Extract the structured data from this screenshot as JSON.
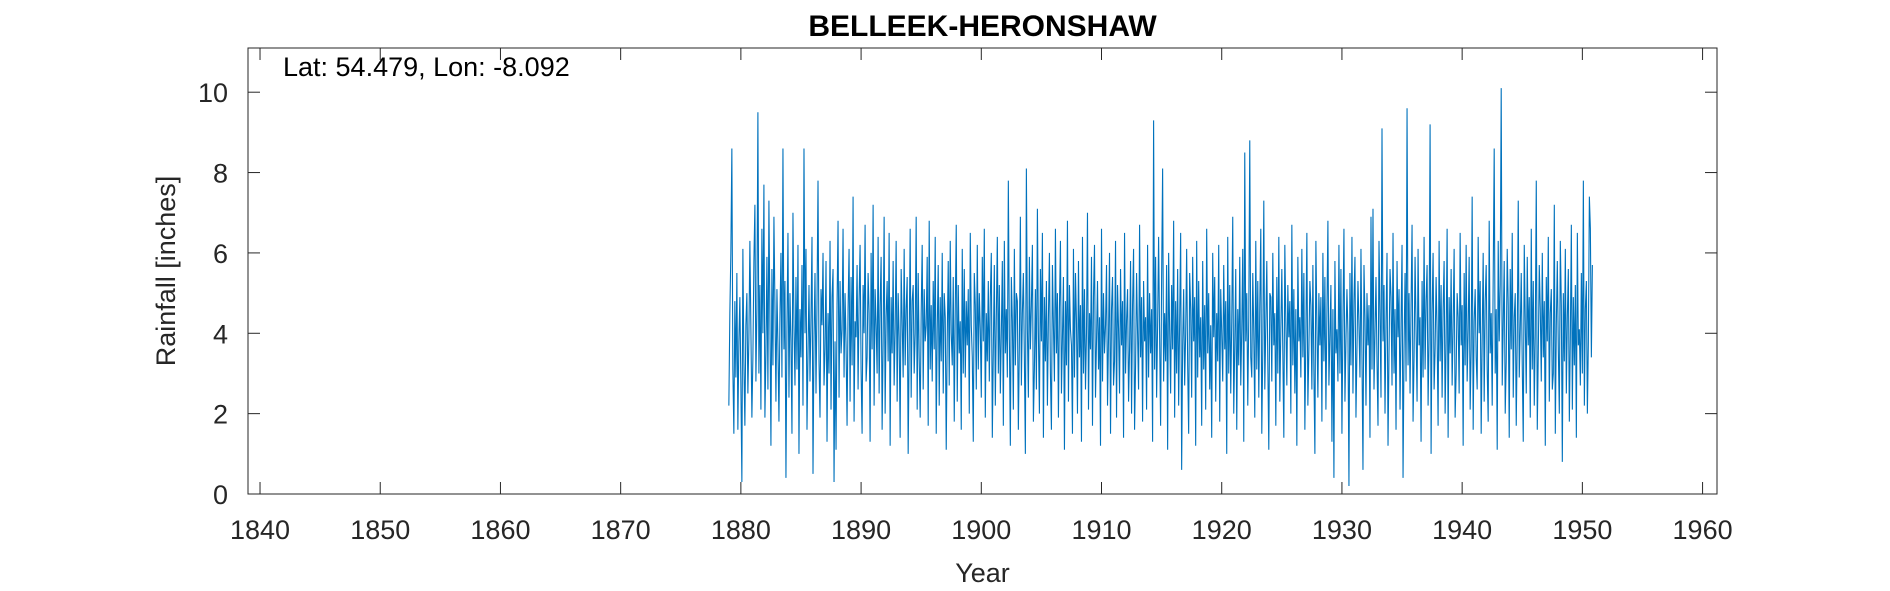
{
  "chart_data": {
    "type": "line",
    "title": "BELLEEK-HERONSHAW",
    "xlabel": "Year",
    "ylabel": "Rainfall [inches]",
    "annotation": "Lat: 54.479, Lon: -8.092",
    "xlim": [
      1839,
      1961.2
    ],
    "ylim": [
      0,
      11.1
    ],
    "xticks": [
      1840,
      1850,
      1860,
      1870,
      1880,
      1890,
      1900,
      1910,
      1920,
      1930,
      1940,
      1950,
      1960
    ],
    "yticks": [
      0,
      2,
      4,
      6,
      8,
      10
    ],
    "grid": false,
    "line_color": "#0072BD",
    "series": [
      {
        "x_start": 1879.0,
        "x_step": 0.083333,
        "values": [
          2.2,
          4.5,
          6.0,
          8.6,
          3.1,
          1.5,
          4.8,
          2.9,
          5.5,
          1.6,
          3.8,
          4.9,
          2.7,
          0.3,
          6.1,
          3.3,
          1.7,
          4.2,
          5.0,
          2.5,
          3.9,
          6.3,
          4.1,
          1.9,
          3.4,
          5.8,
          7.2,
          2.8,
          4.6,
          9.5,
          3.0,
          5.2,
          2.1,
          6.6,
          4.0,
          7.7,
          1.9,
          3.5,
          5.9,
          2.6,
          7.3,
          4.3,
          1.2,
          5.6,
          3.2,
          6.9,
          4.7,
          2.3,
          5.1,
          3.7,
          1.8,
          4.4,
          6.0,
          2.9,
          8.6,
          3.6,
          5.3,
          0.4,
          4.1,
          6.5,
          2.4,
          5.0,
          3.8,
          1.5,
          7.0,
          4.2,
          2.7,
          5.4,
          3.1,
          6.2,
          1.0,
          4.6,
          3.4,
          5.7,
          2.2,
          8.6,
          4.0,
          6.1,
          1.6,
          3.5,
          5.2,
          2.8,
          4.4,
          6.4,
          0.5,
          3.9,
          5.5,
          2.5,
          4.8,
          7.8,
          3.3,
          1.9,
          5.1,
          4.2,
          6.0,
          2.7,
          3.6,
          5.8,
          1.3,
          4.5,
          3.0,
          6.3,
          2.1,
          4.9,
          5.6,
          0.3,
          3.8,
          1.1,
          4.7,
          6.8,
          2.4,
          5.3,
          3.5,
          4.1,
          6.6,
          2.9,
          5.0,
          3.7,
          1.7,
          4.6,
          6.1,
          2.3,
          5.4,
          3.2,
          7.4,
          1.8,
          4.3,
          3.9,
          5.7,
          2.6,
          4.8,
          6.2,
          3.1,
          1.5,
          5.2,
          4.0,
          6.7,
          2.8,
          3.4,
          5.5,
          4.5,
          1.3,
          6.0,
          3.6,
          7.2,
          2.2,
          5.1,
          4.2,
          3.0,
          6.4,
          2.5,
          4.7,
          5.9,
          1.6,
          3.8,
          6.9,
          2.0,
          4.4,
          5.3,
          3.3,
          6.5,
          1.2,
          4.9,
          3.5,
          5.8,
          2.7,
          4.1,
          6.3,
          2.3,
          5.0,
          3.9,
          1.4,
          5.6,
          4.3,
          2.9,
          6.1,
          3.2,
          4.6,
          5.4,
          1.0,
          3.7,
          6.6,
          2.4,
          4.8,
          5.2,
          3.0,
          4.0,
          6.9,
          2.1,
          5.5,
          3.4,
          1.9,
          4.5,
          6.2,
          2.6,
          5.1,
          3.8,
          4.2,
          5.9,
          1.7,
          6.8,
          3.1,
          4.7,
          2.8,
          5.3,
          3.6,
          6.4,
          1.5,
          4.1,
          5.7,
          2.2,
          4.9,
          3.3,
          6.0,
          2.5,
          5.0,
          4.4,
          1.1,
          3.9,
          5.8,
          2.7,
          6.3,
          4.0,
          3.2,
          5.4,
          1.8,
          4.6,
          6.7,
          2.3,
          5.2,
          3.5,
          4.3,
          1.6,
          6.1,
          3.0,
          5.6,
          2.9,
          4.8,
          3.7,
          5.1,
          2.0,
          6.5,
          4.2,
          3.4,
          1.3,
          5.5,
          4.7,
          2.6,
          6.2,
          3.1,
          5.0,
          4.1,
          2.4,
          5.9,
          3.8,
          6.6,
          1.9,
          4.5,
          3.3,
          5.3,
          2.8,
          4.9,
          6.0,
          1.4,
          3.6,
          5.7,
          2.2,
          4.4,
          6.4,
          3.0,
          5.2,
          2.5,
          4.0,
          5.8,
          1.7,
          6.3,
          3.5,
          4.6,
          2.9,
          7.8,
          3.9,
          1.2,
          5.4,
          4.3,
          2.1,
          6.1,
          3.2,
          5.0,
          4.8,
          1.6,
          3.7,
          6.9,
          2.7,
          4.5,
          5.5,
          3.4,
          1.0,
          8.1,
          4.1,
          2.4,
          5.9,
          3.6,
          4.7,
          6.2,
          1.8,
          3.1,
          5.1,
          2.6,
          7.1,
          4.0,
          2.0,
          5.6,
          3.8,
          6.5,
          1.4,
          4.9,
          3.3,
          5.3,
          2.2,
          4.4,
          6.0,
          3.0,
          1.6,
          5.7,
          4.2,
          2.8,
          6.6,
          3.5,
          5.0,
          1.9,
          4.6,
          6.3,
          2.5,
          3.9,
          5.4,
          1.1,
          4.8,
          3.2,
          6.8,
          2.3,
          5.2,
          4.1,
          3.7,
          1.5,
          6.1,
          2.9,
          5.5,
          4.3,
          2.0,
          5.8,
          3.4,
          4.7,
          1.3,
          6.4,
          3.0,
          5.1,
          2.6,
          4.0,
          7.0,
          2.1,
          4.5,
          3.6,
          5.9,
          1.7,
          4.9,
          6.2,
          2.4,
          3.8,
          5.3,
          3.1,
          4.4,
          1.2,
          6.6,
          2.8,
          5.0,
          3.5,
          4.2,
          5.7,
          2.2,
          3.9,
          6.0,
          1.5,
          4.6,
          5.4,
          2.7,
          3.3,
          6.3,
          1.9,
          5.2,
          4.1,
          2.5,
          5.6,
          3.7,
          4.8,
          1.4,
          6.5,
          3.0,
          4.3,
          5.1,
          2.3,
          3.6,
          5.8,
          2.0,
          4.7,
          6.1,
          1.6,
          3.2,
          5.5,
          4.0,
          2.6,
          6.7,
          3.4,
          4.9,
          1.8,
          5.3,
          3.8,
          4.4,
          2.1,
          6.2,
          2.9,
          5.0,
          3.5,
          4.6,
          1.3,
          9.3,
          3.1,
          5.9,
          2.4,
          4.2,
          6.4,
          3.9,
          1.7,
          5.4,
          8.1,
          2.8,
          4.5,
          3.3,
          5.7,
          1.1,
          6.0,
          4.1,
          2.5,
          5.2,
          3.6,
          6.8,
          1.9,
          4.8,
          3.0,
          5.6,
          2.2,
          4.3,
          6.5,
          0.6,
          3.7,
          5.1,
          2.7,
          4.0,
          6.1,
          3.2,
          1.5,
          5.5,
          4.6,
          2.4,
          5.9,
          3.8,
          4.9,
          1.2,
          6.3,
          2.9,
          5.3,
          3.4,
          4.4,
          1.7,
          5.8,
          3.1,
          4.7,
          2.1,
          6.6,
          3.5,
          5.0,
          2.6,
          4.2,
          1.4,
          6.0,
          3.9,
          5.4,
          2.3,
          4.5,
          3.3,
          6.2,
          1.8,
          5.1,
          4.0,
          2.8,
          5.7,
          3.6,
          4.8,
          1.0,
          6.4,
          3.0,
          5.2,
          2.5,
          4.3,
          6.9,
          2.0,
          3.7,
          5.6,
          1.6,
          4.6,
          3.2,
          5.9,
          2.7,
          4.1,
          6.1,
          1.3,
          8.5,
          3.8,
          5.0,
          2.2,
          4.4,
          8.8,
          3.4,
          2.9,
          5.5,
          4.0,
          1.9,
          6.3,
          3.1,
          5.3,
          2.4,
          4.7,
          6.6,
          1.5,
          3.6,
          7.3,
          2.6,
          4.2,
          5.8,
          3.3,
          1.1,
          5.0,
          4.9,
          2.8,
          6.0,
          3.7,
          4.5,
          1.7,
          5.4,
          3.0,
          6.4,
          2.3,
          4.1,
          5.6,
          3.5,
          1.4,
          6.2,
          4.3,
          2.7,
          5.2,
          3.9,
          4.8,
          2.0,
          6.7,
          3.2,
          5.1,
          2.5,
          4.6,
          1.2,
          5.9,
          3.8,
          4.4,
          2.9,
          6.1,
          3.4,
          5.5,
          1.6,
          4.0,
          6.5,
          2.2,
          3.6,
          5.3,
          4.7,
          2.6,
          5.7,
          3.1,
          1.0,
          6.3,
          4.2,
          2.4,
          5.0,
          3.7,
          4.9,
          1.8,
          6.0,
          3.3,
          5.4,
          2.1,
          4.5,
          6.8,
          2.7,
          3.9,
          5.2,
          1.3,
          4.6,
          0.4,
          5.8,
          3.5,
          4.1,
          2.8,
          6.2,
          3.0,
          5.6,
          1.5,
          4.3,
          6.6,
          2.3,
          3.8,
          5.1,
          4.0,
          0.2,
          5.5,
          3.2,
          6.4,
          2.5,
          4.8,
          5.9,
          1.9,
          3.6,
          5.3,
          4.2,
          2.9,
          6.1,
          3.4,
          0.6,
          5.7,
          4.4,
          2.2,
          5.0,
          3.7,
          4.7,
          1.4,
          6.9,
          3.1,
          7.1,
          2.6,
          4.0,
          5.4,
          3.3,
          1.7,
          6.3,
          4.5,
          2.4,
          9.1,
          3.8,
          5.2,
          2.0,
          4.3,
          6.0,
          1.2,
          3.5,
          5.6,
          4.9,
          2.7,
          6.5,
          3.0,
          4.6,
          1.6,
          5.8,
          3.9,
          5.1,
          2.1,
          4.2,
          6.2,
          0.4,
          3.6,
          5.5,
          2.8,
          9.6,
          3.2,
          5.0,
          2.5,
          4.7,
          6.7,
          1.8,
          3.4,
          5.9,
          4.1,
          2.3,
          6.1,
          3.7,
          4.4,
          1.3,
          5.3,
          2.9,
          6.4,
          3.1,
          4.8,
          5.7,
          2.2,
          3.9,
          9.2,
          1.0,
          4.5,
          6.0,
          2.6,
          3.6,
          5.4,
          4.0,
          1.7,
          6.3,
          3.3,
          5.2,
          2.4,
          4.6,
          5.8,
          2.0,
          3.8,
          6.6,
          1.4,
          4.9,
          3.5,
          5.6,
          2.7,
          4.2,
          6.1,
          1.9,
          3.0,
          5.0,
          4.4,
          2.5,
          6.5,
          3.7,
          4.7,
          1.2,
          5.5,
          3.2,
          6.2,
          2.8,
          4.1,
          5.9,
          2.1,
          3.6,
          7.4,
          1.6,
          4.3,
          5.1,
          3.4,
          2.6,
          6.4,
          4.0,
          5.3,
          1.5,
          3.9,
          6.0,
          2.3,
          4.8,
          5.7,
          3.1,
          1.8,
          6.8,
          3.5,
          4.5,
          2.2,
          5.4,
          8.6,
          3.0,
          4.6,
          1.1,
          6.3,
          3.8,
          5.2,
          10.1,
          2.7,
          4.2,
          5.8,
          2.0,
          3.3,
          6.1,
          4.7,
          1.4,
          5.6,
          3.6,
          6.5,
          2.4,
          4.4,
          5.0,
          1.7,
          3.9,
          7.3,
          2.9,
          4.1,
          5.5,
          3.2,
          1.3,
          6.2,
          4.3,
          2.5,
          5.9,
          3.7,
          4.9,
          1.9,
          6.6,
          3.1,
          5.3,
          2.2,
          4.0,
          7.8,
          1.6,
          3.5,
          5.7,
          4.6,
          2.8,
          6.0,
          3.4,
          4.8,
          1.2,
          5.4,
          3.8,
          6.4,
          2.3,
          4.5,
          5.1,
          2.6,
          3.0,
          7.2,
          1.5,
          4.2,
          5.8,
          3.6,
          2.0,
          6.3,
          4.7,
          0.8,
          5.0,
          3.3,
          6.1,
          2.5,
          4.4,
          5.6,
          1.8,
          3.9,
          6.7,
          2.1,
          4.9,
          3.2,
          5.2,
          1.4,
          6.5,
          3.7,
          4.1,
          2.7,
          5.5,
          3.0,
          7.8,
          2.2,
          4.6,
          5.3,
          2.0,
          3.8,
          7.4,
          6.6,
          3.4,
          5.7
        ]
      }
    ]
  }
}
